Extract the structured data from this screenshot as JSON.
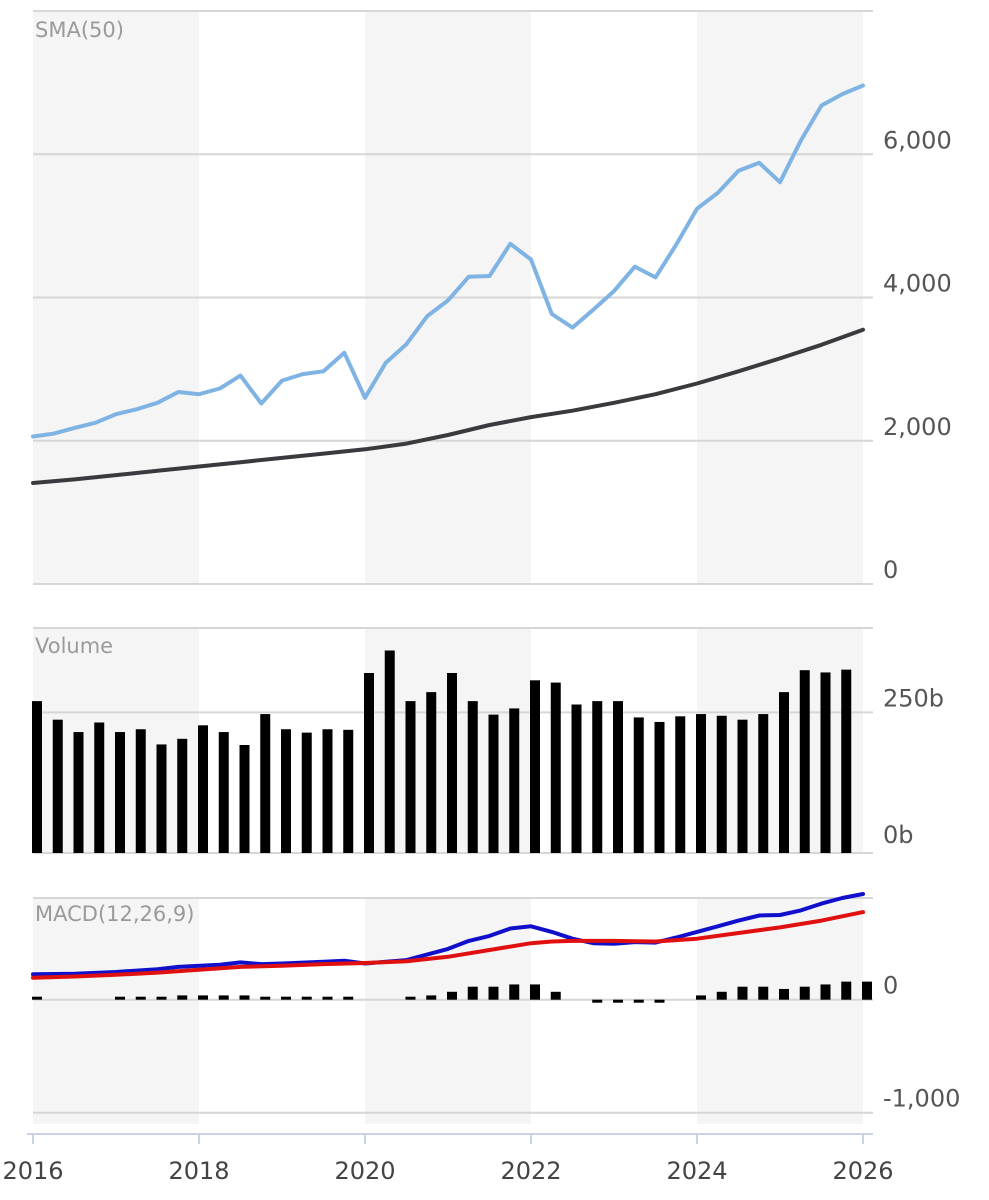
{
  "chart_data": [
    {
      "type": "line",
      "title": "SMA(50)",
      "y_ticks": [
        "0",
        "2,000",
        "4,000",
        "6,000"
      ],
      "y_tick_values": [
        0,
        2000,
        4000,
        6000
      ],
      "ylim": [
        0,
        8000
      ],
      "x_domain": [
        2016,
        2026
      ],
      "grid": true,
      "alternating_year_bands": true,
      "series": [
        {
          "color": "#7fb3e3",
          "x": [
            2016.0,
            2016.25,
            2016.5,
            2016.75,
            2017.0,
            2017.25,
            2017.5,
            2017.75,
            2018.0,
            2018.25,
            2018.5,
            2018.75,
            2019.0,
            2019.25,
            2019.5,
            2019.75,
            2020.0,
            2020.25,
            2020.5,
            2020.75,
            2021.0,
            2021.25,
            2021.5,
            2021.75,
            2022.0,
            2022.25,
            2022.5,
            2022.75,
            2023.0,
            2023.25,
            2023.5,
            2023.75,
            2024.0,
            2024.25,
            2024.5,
            2024.75,
            2025.0,
            2025.25,
            2025.5,
            2025.75,
            2026.0
          ],
          "values": [
            2060,
            2100,
            2180,
            2250,
            2370,
            2440,
            2530,
            2680,
            2650,
            2730,
            2910,
            2520,
            2840,
            2930,
            2970,
            3230,
            2600,
            3090,
            3350,
            3740,
            3960,
            4290,
            4300,
            4750,
            4530,
            3770,
            3580,
            3830,
            4090,
            4430,
            4280,
            4740,
            5240,
            5460,
            5770,
            5880,
            5610,
            6190,
            6680,
            6840,
            6960
          ]
        },
        {
          "color": "#3a3a3e",
          "x": [
            2016.0,
            2016.5,
            2017.0,
            2017.5,
            2018.0,
            2018.5,
            2019.0,
            2019.5,
            2020.0,
            2020.5,
            2021.0,
            2021.5,
            2022.0,
            2022.5,
            2023.0,
            2023.5,
            2024.0,
            2024.5,
            2025.0,
            2025.5,
            2026.0
          ],
          "values": [
            1410,
            1460,
            1520,
            1580,
            1640,
            1700,
            1760,
            1820,
            1880,
            1960,
            2080,
            2220,
            2330,
            2420,
            2530,
            2650,
            2800,
            2970,
            3150,
            3340,
            3550
          ]
        }
      ]
    },
    {
      "type": "bar",
      "title": "Volume",
      "y_ticks": [
        "0b",
        "250b"
      ],
      "y_tick_values": [
        0,
        250
      ],
      "ylim": [
        0,
        400
      ],
      "unit": "b",
      "x": [
        2016.0,
        2016.25,
        2016.5,
        2016.75,
        2017.0,
        2017.25,
        2017.5,
        2017.75,
        2018.0,
        2018.25,
        2018.5,
        2018.75,
        2019.0,
        2019.25,
        2019.5,
        2019.75,
        2020.0,
        2020.25,
        2020.5,
        2020.75,
        2021.0,
        2021.25,
        2021.5,
        2021.75,
        2022.0,
        2022.25,
        2022.5,
        2022.75,
        2023.0,
        2023.25,
        2023.5,
        2023.75,
        2024.0,
        2024.25,
        2024.5,
        2024.75,
        2025.0,
        2025.25,
        2025.5,
        2025.75
      ],
      "values": [
        270,
        237,
        215,
        232,
        215,
        220,
        193,
        203,
        227,
        215,
        192,
        247,
        220,
        214,
        220,
        219,
        320,
        360,
        270,
        286,
        320,
        270,
        246,
        257,
        307,
        303,
        264,
        270,
        270,
        241,
        233,
        243,
        247,
        244,
        237,
        247,
        286,
        325,
        321,
        326
      ],
      "color": "#000000"
    },
    {
      "type": "line",
      "title": "MACD(12,26,9)",
      "y_ticks": [
        "0",
        "-1,000"
      ],
      "y_tick_values": [
        0,
        -1000
      ],
      "ylim": [
        -1100,
        900
      ],
      "series": [
        {
          "color": "#1010cc",
          "x": [
            2016.0,
            2016.5,
            2017.0,
            2017.5,
            2017.75,
            2018.25,
            2018.5,
            2018.75,
            2019.0,
            2019.5,
            2019.75,
            2020.0,
            2020.5,
            2021.0,
            2021.25,
            2021.5,
            2021.75,
            2022.0,
            2022.25,
            2022.5,
            2022.75,
            2023.0,
            2023.25,
            2023.5,
            2023.75,
            2024.0,
            2024.25,
            2024.5,
            2024.75,
            2025.0,
            2025.25,
            2025.5,
            2025.75,
            2026.0
          ],
          "values": [
            225,
            230,
            245,
            270,
            290,
            310,
            330,
            315,
            320,
            335,
            345,
            320,
            350,
            450,
            520,
            565,
            630,
            650,
            600,
            540,
            500,
            495,
            510,
            505,
            550,
            600,
            650,
            700,
            745,
            750,
            790,
            850,
            900,
            935
          ]
        },
        {
          "color": "#e01010",
          "x": [
            2016.0,
            2016.5,
            2017.0,
            2017.5,
            2018.0,
            2018.5,
            2019.0,
            2019.5,
            2020.0,
            2020.5,
            2021.0,
            2021.5,
            2022.0,
            2022.25,
            2022.5,
            2023.0,
            2023.5,
            2024.0,
            2024.5,
            2025.0,
            2025.5,
            2026.0
          ],
          "values": [
            195,
            205,
            220,
            240,
            265,
            290,
            300,
            315,
            325,
            340,
            380,
            440,
            500,
            515,
            520,
            520,
            515,
            540,
            590,
            640,
            700,
            775
          ]
        }
      ],
      "histogram": {
        "x": [
          2016.0,
          2017.0,
          2017.25,
          2017.5,
          2017.75,
          2018.0,
          2018.25,
          2018.5,
          2018.75,
          2019.0,
          2019.25,
          2019.5,
          2019.75,
          2020.5,
          2020.75,
          2021.0,
          2021.25,
          2021.5,
          2021.75,
          2022.0,
          2022.25,
          2022.75,
          2023.0,
          2023.25,
          2023.5,
          2024.0,
          2024.25,
          2024.5,
          2024.75,
          2025.0,
          2025.25,
          2025.5,
          2025.75,
          2026.0
        ],
        "values": [
          18,
          18,
          18,
          18,
          38,
          38,
          38,
          38,
          18,
          18,
          18,
          18,
          18,
          18,
          38,
          70,
          115,
          115,
          135,
          135,
          70,
          -18,
          -18,
          -18,
          -18,
          38,
          70,
          115,
          115,
          95,
          115,
          135,
          160,
          160
        ],
        "color": "#000000"
      }
    }
  ],
  "x_axis": {
    "ticks": [
      "2016",
      "2018",
      "2020",
      "2022",
      "2024",
      "2026"
    ],
    "tick_values": [
      2016,
      2018,
      2020,
      2022,
      2024,
      2026
    ]
  }
}
